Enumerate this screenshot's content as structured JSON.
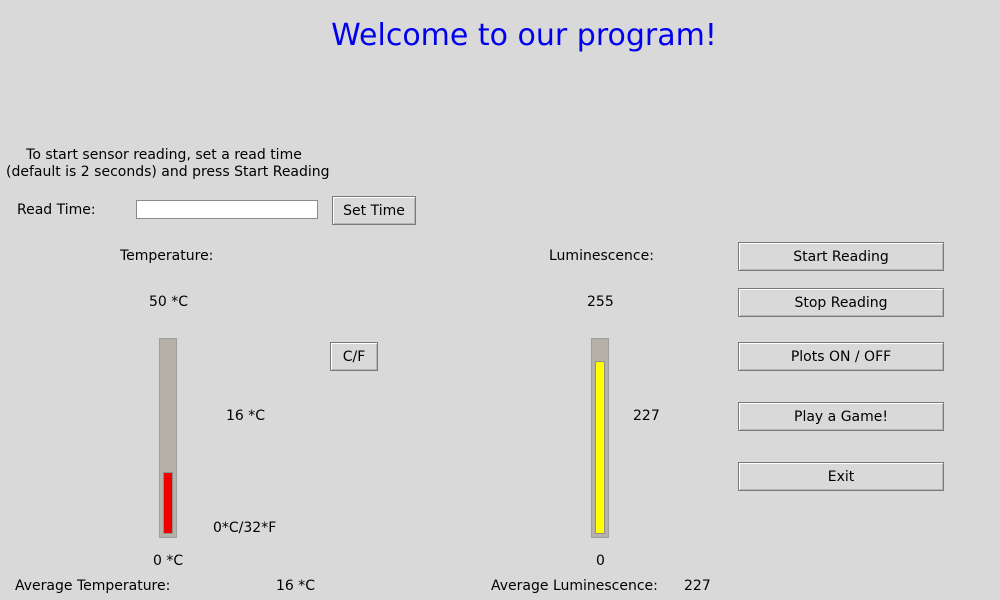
{
  "title": "Welcome to our program!",
  "instructions": {
    "line1": "To start sensor reading, set a read time",
    "line2": "(default is 2 seconds) and press Start Reading"
  },
  "read_time": {
    "label": "Read Time:",
    "value": "",
    "set_button": "Set Time"
  },
  "temperature": {
    "label": "Temperature:",
    "scale_max": "50 *C",
    "scale_min": "0 *C",
    "current": "16 *C",
    "freezing_label": "0*C/32*F",
    "unit_toggle": "C/F",
    "level_fraction": 0.32,
    "fill_color": "#ee0000",
    "average_label": "Average Temperature:",
    "average_value": "16 *C"
  },
  "luminescence": {
    "label": "Luminescence:",
    "scale_max": "255",
    "scale_min": "0",
    "current": "227",
    "level_fraction": 0.89,
    "fill_color": "#ffff00",
    "average_label": "Average Luminescence:",
    "average_value": "227"
  },
  "buttons": {
    "start": "Start Reading",
    "stop": "Stop Reading",
    "plots": "Plots ON / OFF",
    "game": "Play a Game!",
    "exit": "Exit"
  }
}
